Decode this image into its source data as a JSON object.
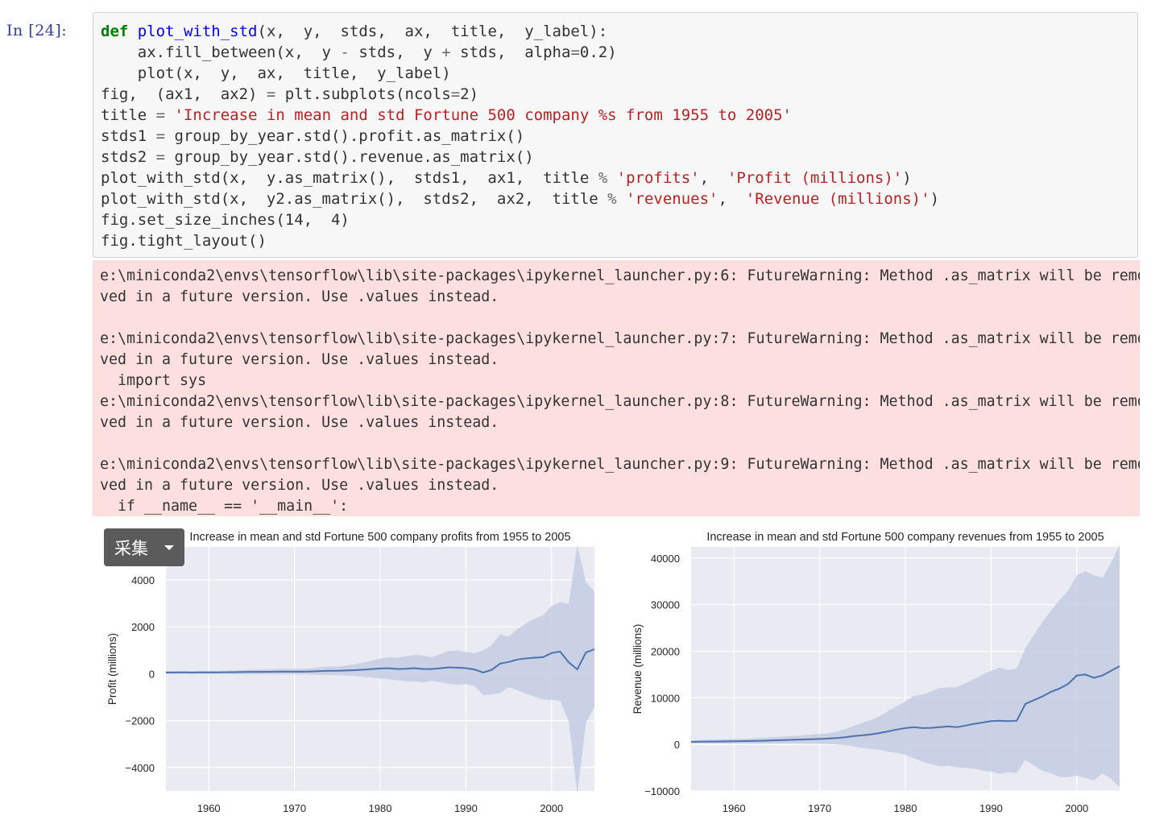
{
  "cell": {
    "prompt": "In  [24]:",
    "code_lines": [
      [
        {
          "t": "def",
          "c": "kw"
        },
        {
          "t": " "
        },
        {
          "t": "plot_with_std",
          "c": "fn"
        },
        {
          "t": "(x,  y,  stds,  ax,  title,  y_label):"
        }
      ],
      [
        {
          "t": "    ax.fill_between(x,  y "
        },
        {
          "t": "-",
          "c": "op"
        },
        {
          "t": " stds,  y "
        },
        {
          "t": "+",
          "c": "op"
        },
        {
          "t": " stds,  alpha"
        },
        {
          "t": "=",
          "c": "op"
        },
        {
          "t": "0.2)"
        }
      ],
      [
        {
          "t": "    plot(x,  y,  ax,  title,  y_label)"
        }
      ],
      [
        {
          "t": "fig,  (ax1,  ax2) "
        },
        {
          "t": "=",
          "c": "op"
        },
        {
          "t": " plt.subplots(ncols"
        },
        {
          "t": "=",
          "c": "op"
        },
        {
          "t": "2)"
        }
      ],
      [
        {
          "t": "title "
        },
        {
          "t": "=",
          "c": "op"
        },
        {
          "t": " "
        },
        {
          "t": "'Increase in mean and std Fortune 500 company %s from 1955 to 2005'",
          "c": "st"
        }
      ],
      [
        {
          "t": "stds1 "
        },
        {
          "t": "=",
          "c": "op"
        },
        {
          "t": " group_by_year.std().profit.as_matrix()"
        }
      ],
      [
        {
          "t": "stds2 "
        },
        {
          "t": "=",
          "c": "op"
        },
        {
          "t": " group_by_year.std().revenue.as_matrix()"
        }
      ],
      [
        {
          "t": "plot_with_std(x,  y.as_matrix(),  stds1,  ax1,  title "
        },
        {
          "t": "%",
          "c": "op"
        },
        {
          "t": " "
        },
        {
          "t": "'profits'",
          "c": "st"
        },
        {
          "t": ",  "
        },
        {
          "t": "'Profit (millions)'",
          "c": "st"
        },
        {
          "t": ")"
        }
      ],
      [
        {
          "t": "plot_with_std(x,  y2.as_matrix(),  stds2,  ax2,  title "
        },
        {
          "t": "%",
          "c": "op"
        },
        {
          "t": " "
        },
        {
          "t": "'revenues'",
          "c": "st"
        },
        {
          "t": ",  "
        },
        {
          "t": "'Revenue (millions)'",
          "c": "st"
        },
        {
          "t": ")"
        }
      ],
      [
        {
          "t": "fig.set_size_inches(14,  4)"
        }
      ],
      [
        {
          "t": "fig.tight_layout()"
        }
      ]
    ],
    "stderr_lines": [
      "e:\\miniconda2\\envs\\tensorflow\\lib\\site-packages\\ipykernel_launcher.py:6: FutureWarning: Method .as_matrix will be remo",
      "ved in a future version. Use .values instead.",
      "",
      "e:\\miniconda2\\envs\\tensorflow\\lib\\site-packages\\ipykernel_launcher.py:7: FutureWarning: Method .as_matrix will be remo",
      "ved in a future version. Use .values instead.",
      "  import sys",
      "e:\\miniconda2\\envs\\tensorflow\\lib\\site-packages\\ipykernel_launcher.py:8: FutureWarning: Method .as_matrix will be remo",
      "ved in a future version. Use .values instead.",
      "",
      "e:\\miniconda2\\envs\\tensorflow\\lib\\site-packages\\ipykernel_launcher.py:9: FutureWarning: Method .as_matrix will be remo",
      "ved in a future version. Use .values instead.",
      "  if __name__ == '__main__':"
    ]
  },
  "collect_button": {
    "label": "采集"
  },
  "colors": {
    "line": "#4c72b0",
    "band": "#c5cde2",
    "plot_bg": "#eaeaf2",
    "grid": "#ffffff"
  },
  "chart_data": [
    {
      "type": "line",
      "title": "Increase in mean and std Fortune 500 company profits from 1955 to 2005",
      "xlabel": "",
      "ylabel": "Profit (millions)",
      "xlim": [
        1955,
        2005
      ],
      "ylim": [
        -5000,
        5400
      ],
      "xticks": [
        1960,
        1970,
        1980,
        1990,
        2000
      ],
      "yticks": [
        -4000,
        -2000,
        0,
        2000,
        4000
      ],
      "grid": true,
      "x": [
        1955,
        1956,
        1957,
        1958,
        1959,
        1960,
        1961,
        1962,
        1963,
        1964,
        1965,
        1966,
        1967,
        1968,
        1969,
        1970,
        1971,
        1972,
        1973,
        1974,
        1975,
        1976,
        1977,
        1978,
        1979,
        1980,
        1981,
        1982,
        1983,
        1984,
        1985,
        1986,
        1987,
        1988,
        1989,
        1990,
        1991,
        1992,
        1993,
        1994,
        1995,
        1996,
        1997,
        1998,
        1999,
        2000,
        2001,
        2002,
        2003,
        2004,
        2005
      ],
      "y": [
        50,
        50,
        52,
        48,
        52,
        55,
        54,
        58,
        62,
        68,
        75,
        78,
        80,
        82,
        85,
        82,
        84,
        92,
        110,
        125,
        120,
        135,
        150,
        170,
        195,
        220,
        230,
        200,
        210,
        235,
        200,
        195,
        230,
        270,
        255,
        235,
        180,
        45,
        160,
        430,
        500,
        600,
        650,
        680,
        700,
        880,
        940,
        480,
        180,
        900,
        1040
      ],
      "std": [
        60,
        62,
        65,
        60,
        65,
        70,
        70,
        75,
        80,
        90,
        100,
        105,
        110,
        115,
        120,
        115,
        120,
        135,
        165,
        185,
        180,
        210,
        250,
        300,
        360,
        420,
        470,
        480,
        530,
        560,
        580,
        500,
        600,
        700,
        730,
        680,
        700,
        950,
        1050,
        1250,
        1080,
        1300,
        1500,
        1650,
        1800,
        2000,
        2100,
        2500,
        5300,
        3000,
        2450
      ]
    },
    {
      "type": "line",
      "title": "Increase in mean and std Fortune 500 company revenues from 1955 to 2005",
      "xlabel": "",
      "ylabel": "Revenue (millions)",
      "xlim": [
        1955,
        2005
      ],
      "ylim": [
        -10000,
        42400
      ],
      "xticks": [
        1960,
        1970,
        1980,
        1990,
        2000
      ],
      "yticks": [
        -10000,
        0,
        10000,
        20000,
        30000,
        40000
      ],
      "grid": true,
      "x": [
        1955,
        1956,
        1957,
        1958,
        1959,
        1960,
        1961,
        1962,
        1963,
        1964,
        1965,
        1966,
        1967,
        1968,
        1969,
        1970,
        1971,
        1972,
        1973,
        1974,
        1975,
        1976,
        1977,
        1978,
        1979,
        1980,
        1981,
        1982,
        1983,
        1984,
        1985,
        1986,
        1987,
        1988,
        1989,
        1990,
        1991,
        1992,
        1993,
        1994,
        1995,
        1996,
        1997,
        1998,
        1999,
        2000,
        2001,
        2002,
        2003,
        2004,
        2005
      ],
      "y": [
        550,
        600,
        620,
        620,
        650,
        680,
        700,
        740,
        780,
        830,
        900,
        950,
        1000,
        1060,
        1120,
        1180,
        1250,
        1380,
        1540,
        1800,
        1950,
        2150,
        2450,
        2800,
        3200,
        3500,
        3700,
        3500,
        3550,
        3700,
        3850,
        3700,
        4050,
        4400,
        4700,
        5000,
        5100,
        5000,
        5100,
        8700,
        9500,
        10300,
        11300,
        12000,
        13000,
        14800,
        15000,
        14300,
        14800,
        15800,
        16800
      ],
      "std": [
        300,
        350,
        400,
        420,
        450,
        500,
        520,
        560,
        600,
        650,
        700,
        760,
        820,
        900,
        980,
        1050,
        1150,
        1400,
        1700,
        2200,
        2700,
        3100,
        3600,
        4400,
        5000,
        5700,
        6700,
        7200,
        7800,
        8400,
        8400,
        8600,
        9100,
        9600,
        10300,
        10800,
        11400,
        11000,
        11200,
        12000,
        14000,
        16000,
        17500,
        19000,
        20000,
        21500,
        22200,
        22000,
        21000,
        23200,
        26000
      ]
    }
  ]
}
